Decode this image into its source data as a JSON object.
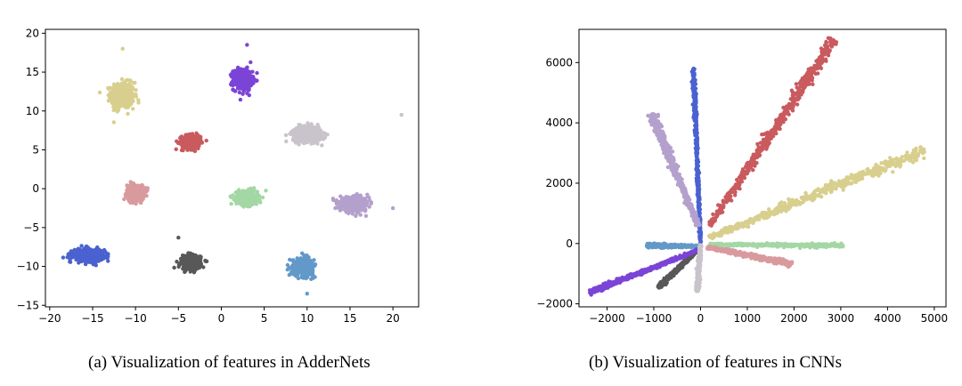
{
  "chart_data": [
    {
      "type": "scatter",
      "caption": "(a) Visualization of features in AdderNets",
      "xlim": [
        -20.5,
        23
      ],
      "ylim": [
        -15.2,
        20.5
      ],
      "xticks": [
        -20,
        -15,
        -10,
        -5,
        0,
        5,
        10,
        15,
        20
      ],
      "yticks": [
        -15,
        -10,
        -5,
        0,
        5,
        10,
        15,
        20
      ],
      "grid": false,
      "series": [
        {
          "color": "#d8cf8e",
          "center": [
            -11.5,
            12
          ],
          "spread": [
            1.2,
            1.5
          ],
          "count": 2000
        },
        {
          "color": "#7b44d6",
          "center": [
            2.5,
            14
          ],
          "spread": [
            1.0,
            1.2
          ],
          "count": 2000
        },
        {
          "color": "#c95a5e",
          "center": [
            -3.5,
            6
          ],
          "spread": [
            1.0,
            0.8
          ],
          "count": 2000
        },
        {
          "color": "#c9c3cb",
          "center": [
            10,
            7
          ],
          "spread": [
            1.5,
            0.9
          ],
          "count": 2000
        },
        {
          "color": "#d99a9e",
          "center": [
            -10,
            -0.5
          ],
          "spread": [
            0.9,
            0.9
          ],
          "count": 2000
        },
        {
          "color": "#a3d7a4",
          "center": [
            3,
            -1.2
          ],
          "spread": [
            1.1,
            0.8
          ],
          "count": 2000
        },
        {
          "color": "#b4a0cc",
          "center": [
            15.5,
            -2
          ],
          "spread": [
            1.5,
            0.8
          ],
          "count": 2000
        },
        {
          "color": "#4a62d0",
          "center": [
            -15.5,
            -8.5
          ],
          "spread": [
            1.6,
            0.7
          ],
          "count": 2000
        },
        {
          "color": "#585858",
          "center": [
            -3.5,
            -9.5
          ],
          "spread": [
            1.0,
            0.8
          ],
          "count": 2000
        },
        {
          "color": "#6399c9",
          "center": [
            9.5,
            -10
          ],
          "spread": [
            1.1,
            1.0
          ],
          "count": 2000
        }
      ],
      "outliers": [
        {
          "x": 21,
          "y": 9.5,
          "color": "#c9c3cb"
        },
        {
          "x": -11.5,
          "y": 18,
          "color": "#d8cf8e"
        },
        {
          "x": 3,
          "y": 18.5,
          "color": "#7b44d6"
        },
        {
          "x": -5,
          "y": -6.3,
          "color": "#585858"
        },
        {
          "x": 10,
          "y": -13.5,
          "color": "#6399c9"
        },
        {
          "x": 20,
          "y": -2.5,
          "color": "#b4a0cc"
        }
      ]
    },
    {
      "type": "scatter",
      "caption": "(b) Visualization of features in CNNs",
      "xlim": [
        -2600,
        5250
      ],
      "ylim": [
        -2100,
        7100
      ],
      "xticks": [
        -2000,
        -1000,
        0,
        1000,
        2000,
        3000,
        4000,
        5000
      ],
      "yticks": [
        -2000,
        0,
        2000,
        4000,
        6000
      ],
      "grid": false,
      "series": [
        {
          "color": "#4a62d0",
          "start": [
            0,
            0
          ],
          "end": [
            -150,
            5800
          ],
          "width": 45,
          "count": 1500
        },
        {
          "color": "#c95a5e",
          "start": [
            200,
            600
          ],
          "end": [
            2850,
            6750
          ],
          "width": 160,
          "count": 2000
        },
        {
          "color": "#d8cf8e",
          "start": [
            200,
            200
          ],
          "end": [
            4800,
            3100
          ],
          "width": 170,
          "count": 2000
        },
        {
          "color": "#b4a0cc",
          "start": [
            -50,
            600
          ],
          "end": [
            -1050,
            4300
          ],
          "width": 120,
          "count": 1600
        },
        {
          "color": "#a3d7a4",
          "start": [
            200,
            -30
          ],
          "end": [
            3050,
            -70
          ],
          "width": 50,
          "count": 1500
        },
        {
          "color": "#d99a9e",
          "start": [
            150,
            -120
          ],
          "end": [
            1950,
            -680
          ],
          "width": 70,
          "count": 1500
        },
        {
          "color": "#6399c9",
          "start": [
            -50,
            -90
          ],
          "end": [
            -1150,
            -70
          ],
          "width": 50,
          "count": 1200
        },
        {
          "color": "#585858",
          "start": [
            -50,
            -200
          ],
          "end": [
            -900,
            -1450
          ],
          "width": 60,
          "count": 1200
        },
        {
          "color": "#7b44d6",
          "start": [
            -50,
            -220
          ],
          "end": [
            -2380,
            -1620
          ],
          "width": 70,
          "count": 1800
        },
        {
          "color": "#c9c3cb",
          "start": [
            0,
            -50
          ],
          "end": [
            -70,
            -1580
          ],
          "width": 50,
          "count": 1000
        }
      ]
    }
  ]
}
